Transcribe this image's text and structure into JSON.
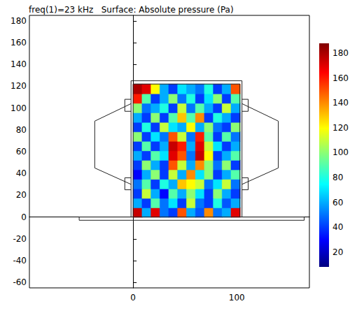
{
  "chart_data": {
    "type": "heatmap",
    "title": "freq(1)=23 kHz   Surface: Absolute pressure (Pa)",
    "xlim": [
      -100,
      170
    ],
    "xticks": [
      0,
      100
    ],
    "ylim": [
      -65,
      185
    ],
    "yticks": [
      -60,
      -40,
      -20,
      0,
      20,
      40,
      60,
      80,
      100,
      120,
      140,
      160,
      180
    ],
    "cells": {
      "x_edges": [
        0,
        8.6,
        17.2,
        25.8,
        34.3,
        42.9,
        51.5,
        60.1,
        68.7,
        77.3,
        85.8,
        94.4,
        103
      ],
      "y_edges": [
        0,
        8.7,
        17.4,
        26.1,
        34.9,
        43.6,
        52.3,
        61,
        69.7,
        78.4,
        87.1,
        95.9,
        104.6,
        113.3,
        122
      ],
      "values": [
        [
          175,
          60,
          170,
          50,
          40,
          150,
          60,
          45,
          140,
          50,
          60,
          170
        ],
        [
          60,
          40,
          90,
          50,
          70,
          40,
          110,
          50,
          40,
          80,
          45,
          60
        ],
        [
          40,
          110,
          60,
          30,
          90,
          60,
          100,
          70,
          40,
          100,
          60,
          40
        ],
        [
          50,
          90,
          40,
          80,
          60,
          130,
          120,
          110,
          50,
          70,
          110,
          50
        ],
        [
          30,
          60,
          100,
          40,
          110,
          60,
          140,
          70,
          100,
          40,
          60,
          90
        ],
        [
          40,
          100,
          60,
          40,
          150,
          110,
          60,
          140,
          100,
          50,
          100,
          40
        ],
        [
          60,
          40,
          90,
          70,
          170,
          150,
          50,
          175,
          120,
          40,
          60,
          90
        ],
        [
          40,
          90,
          40,
          60,
          175,
          160,
          60,
          170,
          110,
          70,
          40,
          60
        ],
        [
          100,
          40,
          70,
          50,
          150,
          110,
          50,
          160,
          90,
          40,
          90,
          50
        ],
        [
          40,
          80,
          40,
          110,
          70,
          60,
          120,
          60,
          100,
          50,
          40,
          100
        ],
        [
          60,
          40,
          100,
          40,
          90,
          130,
          90,
          140,
          40,
          80,
          60,
          40
        ],
        [
          100,
          50,
          60,
          80,
          40,
          110,
          50,
          90,
          60,
          40,
          110,
          60
        ],
        [
          160,
          90,
          40,
          60,
          100,
          50,
          80,
          40,
          70,
          100,
          40,
          90
        ],
        [
          180,
          170,
          120,
          60,
          40,
          70,
          60,
          50,
          80,
          40,
          60,
          150
        ]
      ]
    },
    "colorbar": {
      "range": [
        8,
        188
      ],
      "ticks": [
        20,
        40,
        60,
        80,
        100,
        120,
        140,
        160,
        180
      ]
    },
    "outlines": [
      [
        [
          0,
          0
        ],
        [
          0,
          122
        ],
        [
          103,
          122
        ],
        [
          103,
          0
        ]
      ],
      [
        [
          -2,
          0
        ],
        [
          -2,
          125
        ],
        [
          105,
          125
        ],
        [
          105,
          0
        ]
      ],
      [
        [
          -52,
          0
        ],
        [
          165,
          0
        ],
        [
          165,
          -3
        ],
        [
          -52,
          -3
        ],
        [
          -52,
          0
        ]
      ],
      [
        [
          -2,
          30
        ],
        [
          -37,
          45
        ],
        [
          -37,
          88
        ],
        [
          -2,
          104
        ]
      ],
      [
        [
          -2,
          97
        ],
        [
          -8,
          97
        ],
        [
          -8,
          108
        ],
        [
          -2,
          108
        ]
      ],
      [
        [
          -2,
          25
        ],
        [
          -8,
          25
        ],
        [
          -8,
          36
        ],
        [
          -2,
          36
        ]
      ],
      [
        [
          105,
          30
        ],
        [
          140,
          45
        ],
        [
          140,
          88
        ],
        [
          105,
          104
        ]
      ],
      [
        [
          105,
          97
        ],
        [
          111,
          97
        ],
        [
          111,
          108
        ],
        [
          105,
          108
        ]
      ],
      [
        [
          105,
          25
        ],
        [
          111,
          25
        ],
        [
          111,
          36
        ],
        [
          105,
          36
        ]
      ]
    ]
  }
}
